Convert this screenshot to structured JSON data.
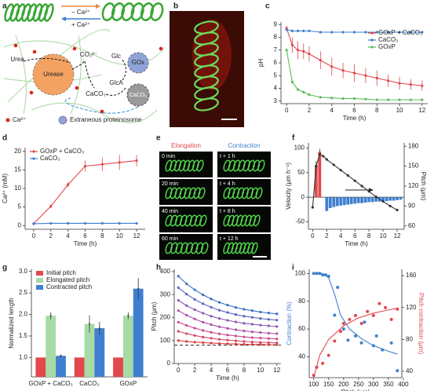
{
  "panel_labels": [
    "a",
    "b",
    "c",
    "d",
    "e",
    "f",
    "g",
    "h",
    "i"
  ],
  "diagram": {
    "minus_ca": "− Ca²⁺",
    "plus_ca": "+ Ca²⁺",
    "urea": "Urea",
    "carbonate": "CO₃²⁻",
    "urease": "Urease",
    "caco3_left": "CaCO₃",
    "glc": "Glc",
    "gox": "GOx",
    "glca": "GlcA",
    "caco3_right": "CaCO₃",
    "legend_ca": "Ca²⁺",
    "legend_proteinosome": "Extraneous proteinosome"
  },
  "timelapse": {
    "elongation": "Elongation",
    "contraction": "Contraction",
    "elongation_times": [
      "0 min",
      "20 min",
      "40 min",
      "60 min"
    ],
    "contraction_times": [
      "t + 1 h",
      "t + 4 h",
      "t + 8 h",
      "t + 12 h"
    ]
  },
  "chart_data": [
    {
      "type": "line",
      "ylabel": "pH",
      "xlabel": "Time (h)",
      "xlim": [
        -0.5,
        12.5
      ],
      "ylim": [
        2.8,
        9.2
      ],
      "xticks": [
        0,
        2,
        4,
        6,
        8,
        10,
        12
      ],
      "yticks": [
        3,
        4,
        5,
        6,
        7,
        8,
        9
      ],
      "legend": "upper right",
      "x": [
        0,
        0.5,
        1,
        1.5,
        2,
        3,
        4,
        5,
        6,
        7,
        8,
        9,
        10,
        11,
        12
      ],
      "series": [
        {
          "name": "GOxP + CaCO₃",
          "color": "#e2474b",
          "values": [
            8.7,
            7.4,
            7.0,
            6.9,
            6.7,
            6.2,
            5.7,
            5.4,
            5.2,
            5.0,
            4.8,
            4.6,
            4.4,
            4.3,
            4.2
          ],
          "errors": [
            0.2,
            0.6,
            0.7,
            0.6,
            0.6,
            0.7,
            0.7,
            0.6,
            0.7,
            0.6,
            0.6,
            0.5,
            0.5,
            0.4,
            0.4
          ]
        },
        {
          "name": "CaCO₃",
          "color": "#3f7fcf",
          "values": [
            8.6,
            8.5,
            8.5,
            8.5,
            8.5,
            8.4,
            8.4,
            8.4,
            8.4,
            8.4,
            8.4,
            8.4,
            8.4,
            8.4,
            8.4
          ]
        },
        {
          "name": "GOxP",
          "color": "#5bbd5b",
          "values": [
            7.0,
            4.5,
            3.9,
            3.7,
            3.5,
            3.3,
            3.25,
            3.2,
            3.2,
            3.15,
            3.1,
            3.1,
            3.1,
            3.1,
            3.1
          ]
        }
      ]
    },
    {
      "type": "line",
      "ylabel": "Ca²⁺ (mM)",
      "xlabel": "Time (h)",
      "xlim": [
        -1,
        13
      ],
      "ylim": [
        -1,
        21
      ],
      "xticks": [
        0,
        2,
        4,
        6,
        8,
        10,
        12
      ],
      "yticks": [
        0,
        5,
        10,
        15,
        20
      ],
      "legend": "upper left",
      "x": [
        0,
        2,
        4,
        6,
        8,
        10,
        12
      ],
      "series": [
        {
          "name": "GOxP + CaCO₃",
          "color": "#e2474b",
          "values": [
            0.5,
            5.2,
            11,
            16,
            16.5,
            17,
            17.5
          ],
          "errors": [
            0.4,
            0.5,
            0.7,
            1.5,
            1.8,
            2,
            1.5
          ]
        },
        {
          "name": "CaCO₃",
          "color": "#3f7fcf",
          "values": [
            0.5,
            0.6,
            0.6,
            0.6,
            0.6,
            0.6,
            0.6
          ]
        }
      ]
    },
    {
      "type": "combo",
      "ylabel": "Velocity (μm h⁻¹)",
      "y2label": "Pitch (μm)",
      "xlabel": "Time (h)",
      "xlim": [
        -0.6,
        13
      ],
      "ylim": [
        -65,
        110
      ],
      "y2lim": [
        55,
        185
      ],
      "xticks": [
        0,
        2,
        4,
        6,
        8,
        10,
        12
      ],
      "yticks": [
        -50,
        0,
        50,
        100
      ],
      "y2ticks": [
        60,
        90,
        120,
        150,
        180
      ],
      "series": [
        {
          "kind": "bar",
          "color": "#e2474b",
          "x": [
            0.5,
            1
          ],
          "values": [
            65,
            92
          ],
          "errors": [
            8,
            6
          ]
        },
        {
          "kind": "bar",
          "color": "#3f7fcf",
          "x": [
            2,
            2.5,
            3,
            3.5,
            4,
            4.5,
            5,
            5.5,
            6,
            6.5,
            7,
            7.5,
            8,
            8.5,
            9,
            9.5,
            10,
            10.5,
            11,
            11.5,
            12,
            12.5
          ],
          "values": [
            -28,
            -22,
            -20,
            -18,
            -17,
            -16,
            -15,
            -14,
            -13,
            -12,
            -12,
            -11,
            -10,
            -10,
            -9,
            -9,
            -8,
            -8,
            -7,
            -7,
            -6,
            -5
          ]
        },
        {
          "kind": "line",
          "axis": "y2",
          "color": "#333333",
          "x": [
            0,
            0.5,
            1,
            1.5,
            2,
            3,
            4,
            5,
            6,
            7,
            8,
            9,
            10,
            11,
            12
          ],
          "values": [
            88,
            150,
            168,
            165,
            160,
            152,
            144,
            136,
            128,
            120,
            112,
            104,
            97,
            90,
            84
          ]
        }
      ]
    },
    {
      "type": "bar",
      "ylabel": "Normalized length",
      "categories": [
        "GOxP + CaCO₃",
        "CaCO₃",
        "GOxP"
      ],
      "ylim": [
        0.55,
        3.05
      ],
      "yticks": [
        {
          "value": 1,
          "label": "1.0"
        },
        {
          "value": 1.5,
          "label": "1.5"
        },
        {
          "value": 2,
          "label": "2.0"
        },
        {
          "value": 2.5,
          "label": "2.5"
        },
        {
          "value": 3,
          "label": "3.0"
        }
      ],
      "legend": "upper left",
      "series": [
        {
          "name": "Initial pitch",
          "color": "#e2474b",
          "values": [
            1,
            1,
            1
          ]
        },
        {
          "name": "Elongated pitch",
          "color": "#a6dba6",
          "values": [
            1.97,
            1.78,
            1.97
          ],
          "errors": [
            0.08,
            0.2,
            0.08
          ]
        },
        {
          "name": "Contracted pitch",
          "color": "#3f7fcf",
          "values": [
            1.04,
            1.68,
            2.6
          ],
          "errors": [
            0.03,
            0.15,
            0.25
          ]
        }
      ]
    },
    {
      "type": "line",
      "ylabel": "Pitch (μm)",
      "xlabel": "Time (h)",
      "xlim": [
        -0.5,
        12.5
      ],
      "ylim": [
        0,
        410
      ],
      "xticks": [
        0,
        2,
        4,
        6,
        8,
        10,
        12
      ],
      "yticks": [
        0,
        100,
        200,
        300,
        400
      ],
      "hline": 80,
      "x": [
        0,
        1,
        2,
        3,
        4,
        5,
        6,
        7,
        8,
        9,
        10,
        11,
        12
      ],
      "series": [
        {
          "color": "#3a6fc4",
          "values": [
            380,
            347,
            321,
            299,
            281,
            266,
            254,
            244,
            236,
            230,
            224,
            220,
            216
          ]
        },
        {
          "color": "#5d62c0",
          "values": [
            330,
            302,
            279,
            260,
            245,
            232,
            222,
            213,
            206,
            201,
            196,
            192,
            189
          ]
        },
        {
          "color": "#8a58b8",
          "values": [
            275,
            252,
            234,
            219,
            206,
            196,
            188,
            181,
            175,
            171,
            167,
            164,
            161
          ]
        },
        {
          "color": "#b050a8",
          "values": [
            230,
            210,
            194,
            180,
            169,
            160,
            153,
            147,
            142,
            138,
            135,
            132,
            130
          ]
        },
        {
          "color": "#c84a8a",
          "values": [
            180,
            166,
            154,
            144,
            136,
            129,
            124,
            120,
            116,
            113,
            111,
            109,
            107
          ]
        },
        {
          "color": "#d4486a",
          "values": [
            140,
            130,
            122,
            115,
            110,
            105,
            102,
            99,
            96,
            94,
            92,
            91,
            90
          ]
        },
        {
          "color": "#d9403f",
          "values": [
            100,
            96,
            93,
            91,
            89,
            87,
            86,
            85,
            84,
            83,
            83,
            82,
            82
          ]
        }
      ]
    },
    {
      "type": "scatter",
      "xlabel": "Pitch (μm)",
      "ylabel": "Contraction (%)",
      "y2label": "Pitch contraction (μm)",
      "xlim": [
        85,
        395
      ],
      "ylim": [
        25,
        103
      ],
      "y2lim": [
        32,
        168
      ],
      "xticks": [
        100,
        150,
        200,
        250,
        300,
        350,
        400
      ],
      "yticks": [
        40,
        60,
        80,
        100
      ],
      "y2ticks": [
        40,
        80,
        120,
        160
      ],
      "series": [
        {
          "color": "#3f7fcf",
          "line": false,
          "x": [
            100,
            110,
            120,
            130,
            140,
            150,
            170,
            180,
            200,
            215,
            240,
            260,
            270,
            300,
            310,
            330,
            360,
            380
          ],
          "values": [
            100,
            100,
            100,
            99,
            99,
            98,
            70,
            90,
            60,
            52,
            55,
            50,
            65,
            48,
            55,
            45,
            50,
            30
          ]
        },
        {
          "color": "#e2474b",
          "line": false,
          "axis": "y2",
          "x": [
            100,
            110,
            130,
            150,
            170,
            190,
            200,
            220,
            240,
            260,
            280,
            300,
            320,
            340,
            360,
            380
          ],
          "values": [
            35,
            45,
            50,
            60,
            78,
            90,
            100,
            105,
            110,
            100,
            115,
            110,
            125,
            120,
            105,
            118
          ]
        },
        {
          "color": "#3f7fcf",
          "markers": false,
          "x": [
            100,
            130,
            150,
            170,
            190,
            220,
            260,
            300,
            350,
            380
          ],
          "values": [
            100,
            100,
            97,
            85,
            70,
            60,
            53,
            48,
            44,
            42
          ]
        },
        {
          "color": "#e2474b",
          "markers": false,
          "axis": "y2",
          "x": [
            100,
            120,
            150,
            200,
            250,
            300,
            350,
            380
          ],
          "values": [
            32,
            60,
            80,
            97,
            107,
            113,
            117,
            119
          ]
        }
      ]
    }
  ]
}
